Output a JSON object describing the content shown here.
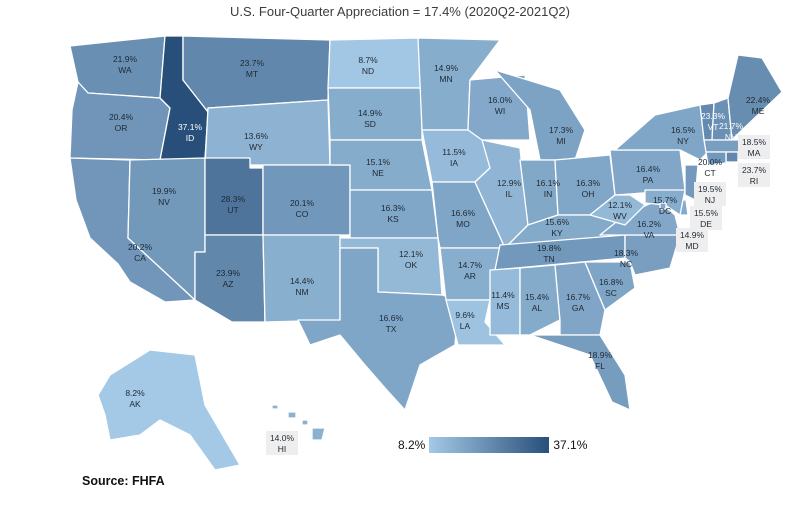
{
  "title": "U.S. Four-Quarter Appreciation = 17.4% (2020Q2-2021Q2)",
  "source": "Source:  FHFA",
  "legend": {
    "min_label": "8.2%",
    "max_label": "37.1%",
    "min": 8.2,
    "max": 37.1,
    "color_low": "#a4c9e6",
    "color_high": "#284f7a"
  },
  "states": [
    {
      "code": "WA",
      "value": 21.9,
      "label": "21.9%"
    },
    {
      "code": "OR",
      "value": 20.4,
      "label": "20.4%"
    },
    {
      "code": "CA",
      "value": 20.2,
      "label": "20.2%"
    },
    {
      "code": "ID",
      "value": 37.1,
      "label": "37.1%"
    },
    {
      "code": "NV",
      "value": 19.9,
      "label": "19.9%"
    },
    {
      "code": "MT",
      "value": 23.7,
      "label": "23.7%"
    },
    {
      "code": "WY",
      "value": 13.6,
      "label": "13.6%"
    },
    {
      "code": "UT",
      "value": 28.3,
      "label": "28.3%"
    },
    {
      "code": "AZ",
      "value": 23.9,
      "label": "23.9%"
    },
    {
      "code": "CO",
      "value": 20.1,
      "label": "20.1%"
    },
    {
      "code": "NM",
      "value": 14.4,
      "label": "14.4%"
    },
    {
      "code": "ND",
      "value": 8.7,
      "label": "8.7%"
    },
    {
      "code": "SD",
      "value": 14.9,
      "label": "14.9%"
    },
    {
      "code": "NE",
      "value": 15.1,
      "label": "15.1%"
    },
    {
      "code": "KS",
      "value": 16.3,
      "label": "16.3%"
    },
    {
      "code": "OK",
      "value": 12.1,
      "label": "12.1%"
    },
    {
      "code": "TX",
      "value": 16.6,
      "label": "16.6%"
    },
    {
      "code": "MN",
      "value": 14.9,
      "label": "14.9%"
    },
    {
      "code": "IA",
      "value": 11.5,
      "label": "11.5%"
    },
    {
      "code": "MO",
      "value": 16.6,
      "label": "16.6%"
    },
    {
      "code": "AR",
      "value": 14.7,
      "label": "14.7%"
    },
    {
      "code": "LA",
      "value": 9.6,
      "label": "9.6%"
    },
    {
      "code": "WI",
      "value": 16.0,
      "label": "16.0%"
    },
    {
      "code": "IL",
      "value": 12.9,
      "label": "12.9%"
    },
    {
      "code": "MI",
      "value": 17.3,
      "label": "17.3%"
    },
    {
      "code": "IN",
      "value": 16.1,
      "label": "16.1%"
    },
    {
      "code": "OH",
      "value": 16.3,
      "label": "16.3%"
    },
    {
      "code": "KY",
      "value": 15.6,
      "label": "15.6%"
    },
    {
      "code": "TN",
      "value": 19.8,
      "label": "19.8%"
    },
    {
      "code": "MS",
      "value": 11.4,
      "label": "11.4%"
    },
    {
      "code": "AL",
      "value": 15.4,
      "label": "15.4%"
    },
    {
      "code": "GA",
      "value": 16.7,
      "label": "16.7%"
    },
    {
      "code": "FL",
      "value": 18.9,
      "label": "18.9%"
    },
    {
      "code": "SC",
      "value": 16.8,
      "label": "16.8%"
    },
    {
      "code": "NC",
      "value": 18.3,
      "label": "18.3%"
    },
    {
      "code": "VA",
      "value": 16.2,
      "label": "16.2%"
    },
    {
      "code": "WV",
      "value": 12.1,
      "label": "12.1%"
    },
    {
      "code": "PA",
      "value": 16.4,
      "label": "16.4%"
    },
    {
      "code": "NY",
      "value": 16.5,
      "label": "16.5%"
    },
    {
      "code": "VT",
      "value": 23.3,
      "label": "23.3%"
    },
    {
      "code": "NH",
      "value": 21.7,
      "label": "21.7%"
    },
    {
      "code": "ME",
      "value": 22.4,
      "label": "22.4%"
    },
    {
      "code": "MA",
      "value": 18.5,
      "label": "18.5%"
    },
    {
      "code": "RI",
      "value": 23.7,
      "label": "23.7%"
    },
    {
      "code": "CT",
      "value": 20.0,
      "label": "20.0%"
    },
    {
      "code": "NJ",
      "value": 19.5,
      "label": "19.5%"
    },
    {
      "code": "DE",
      "value": 15.5,
      "label": "15.5%"
    },
    {
      "code": "MD",
      "value": 14.9,
      "label": "14.9%"
    },
    {
      "code": "DC",
      "value": 15.7,
      "label": "15.7%"
    },
    {
      "code": "AK",
      "value": 8.2,
      "label": "8.2%"
    },
    {
      "code": "HI",
      "value": 14.0,
      "label": "14.0%"
    }
  ]
}
